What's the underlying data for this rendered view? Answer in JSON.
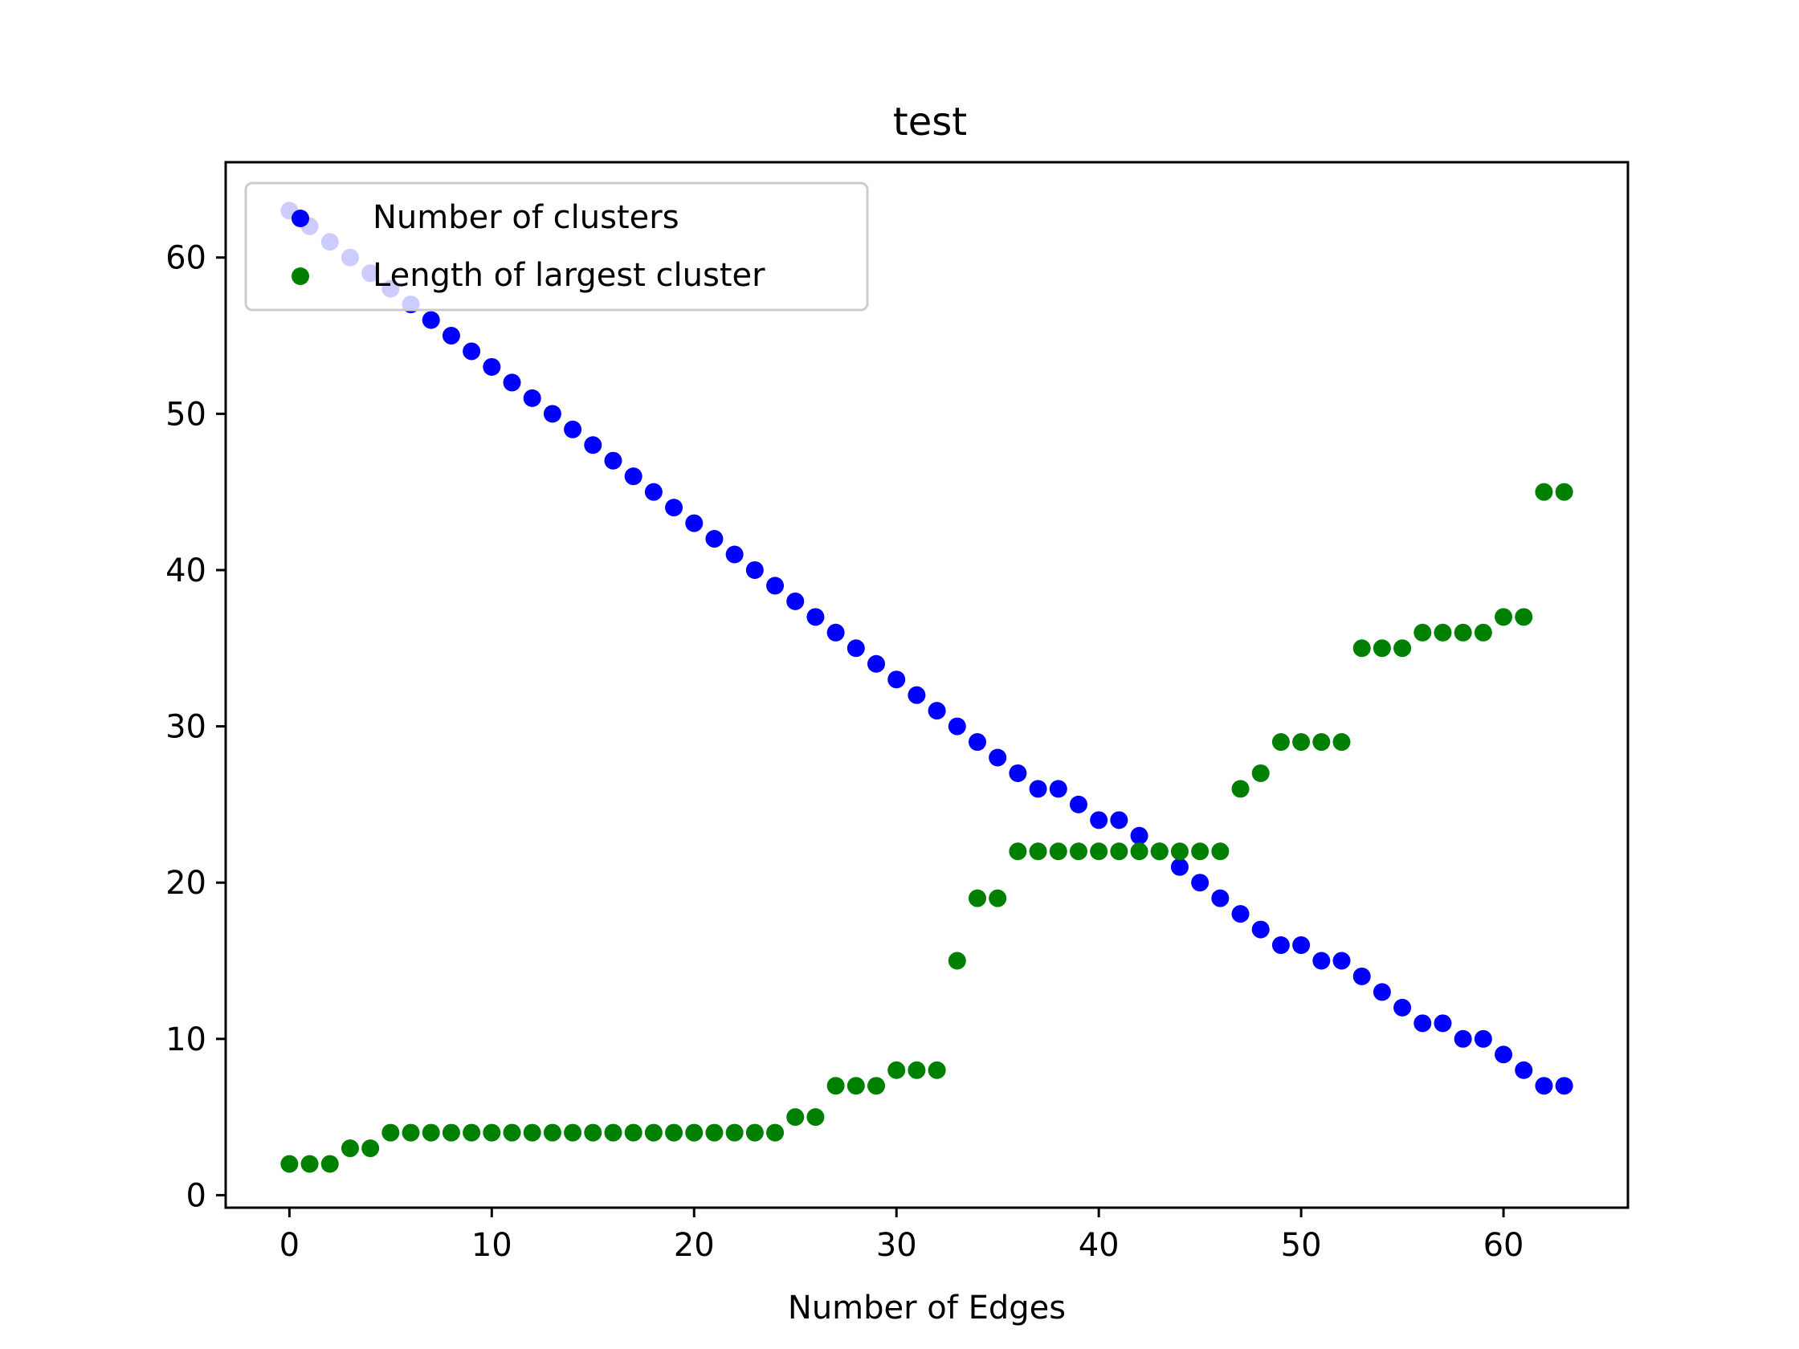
{
  "chart_data": {
    "type": "scatter",
    "title": "test",
    "xlabel": "Number of Edges",
    "ylabel": "",
    "xlim": [
      -3.15,
      66.15
    ],
    "ylim": [
      -0.8,
      66.1
    ],
    "xticks": [
      0,
      10,
      20,
      30,
      40,
      50,
      60
    ],
    "yticks": [
      0,
      10,
      20,
      30,
      40,
      50,
      60
    ],
    "grid": false,
    "legend_position": "upper-left",
    "x": [
      0,
      1,
      2,
      3,
      4,
      5,
      6,
      7,
      8,
      9,
      10,
      11,
      12,
      13,
      14,
      15,
      16,
      17,
      18,
      19,
      20,
      21,
      22,
      23,
      24,
      25,
      26,
      27,
      28,
      29,
      30,
      31,
      32,
      33,
      34,
      35,
      36,
      37,
      38,
      39,
      40,
      41,
      42,
      43,
      44,
      45,
      46,
      47,
      48,
      49,
      50,
      51,
      52,
      53,
      54,
      55,
      56,
      57,
      58,
      59,
      60,
      61,
      62,
      63
    ],
    "series": [
      {
        "name": "Number of clusters",
        "color": "#0000ff",
        "values": [
          63,
          62,
          61,
          60,
          59,
          58,
          57,
          56,
          55,
          54,
          53,
          52,
          51,
          50,
          49,
          48,
          47,
          46,
          45,
          44,
          43,
          42,
          41,
          40,
          39,
          38,
          37,
          36,
          35,
          34,
          33,
          32,
          31,
          30,
          29,
          28,
          27,
          26,
          26,
          25,
          24,
          24,
          23,
          22,
          21,
          20,
          19,
          18,
          17,
          16,
          16,
          15,
          15,
          14,
          13,
          12,
          11,
          11,
          10,
          10,
          9,
          8,
          7,
          7
        ]
      },
      {
        "name": "Length of largest cluster",
        "color": "#008000",
        "values": [
          2,
          2,
          2,
          3,
          3,
          4,
          4,
          4,
          4,
          4,
          4,
          4,
          4,
          4,
          4,
          4,
          4,
          4,
          4,
          4,
          4,
          4,
          4,
          4,
          4,
          5,
          5,
          7,
          7,
          7,
          8,
          8,
          8,
          15,
          19,
          19,
          22,
          22,
          22,
          22,
          22,
          22,
          22,
          22,
          22,
          22,
          22,
          26,
          27,
          29,
          29,
          29,
          29,
          35,
          35,
          35,
          36,
          36,
          36,
          36,
          37,
          37,
          45,
          45
        ]
      }
    ]
  }
}
